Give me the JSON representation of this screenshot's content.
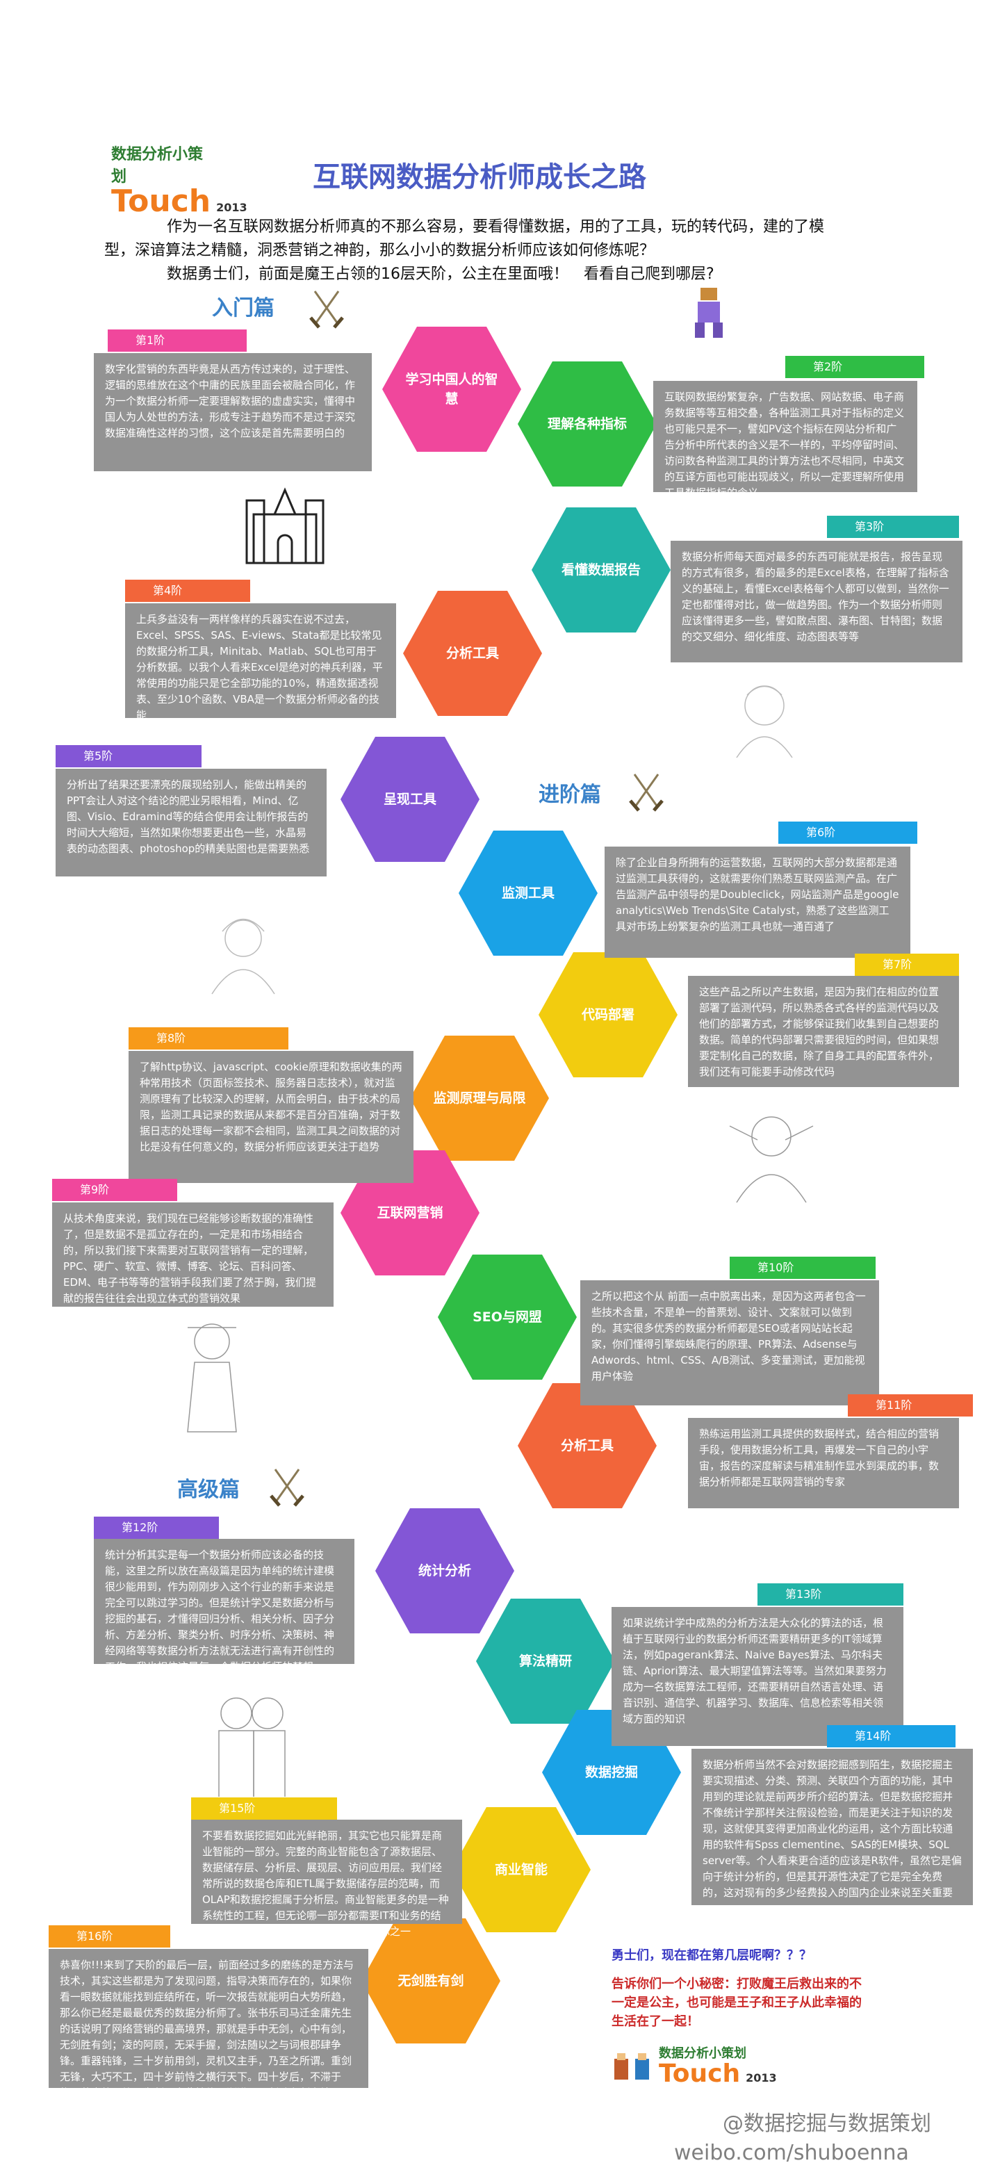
{
  "header": {
    "logo_small": "数据分析小策划",
    "logo_big": "Touch",
    "logo_year": "2013",
    "title": "互联网数据分析师成长之路"
  },
  "intro": {
    "line1": "作为一名互联网数据分析师真的不那么容易，要看得懂数据，用的了工具，玩的转代码，建的了模型，深谙算法之精髓，洞悉营销之神韵，那么小小的数据分析师应该如何修炼呢？",
    "line2": "数据勇士们，前面是魔王占领的16层天阶，公主在里面哦！　看看自己爬到哪层?"
  },
  "sections": {
    "beginner": "入门篇",
    "advanced": "进阶篇",
    "senior": "高级篇"
  },
  "hexes": [
    {
      "label": "学习中国人的智慧",
      "color": "#f0479c"
    },
    {
      "label": "理解各种指标",
      "color": "#2fbd45"
    },
    {
      "label": "看懂数据报告",
      "color": "#22b3a7"
    },
    {
      "label": "分析工具",
      "color": "#f2653a"
    },
    {
      "label": "呈现工具",
      "color": "#8356d6"
    },
    {
      "label": "监测工具",
      "color": "#1aa2e6"
    },
    {
      "label": "代码部署",
      "color": "#f2cc0f"
    },
    {
      "label": "监测原理与局限",
      "color": "#f79a19"
    },
    {
      "label": "互联网营销",
      "color": "#f0479c"
    },
    {
      "label": "SEO与网盟",
      "color": "#2fbd45"
    },
    {
      "label": "分析工具",
      "color": "#f2653a"
    },
    {
      "label": "统计分析",
      "color": "#8356d6"
    },
    {
      "label": "算法精研",
      "color": "#22b3a7"
    },
    {
      "label": "数据挖掘",
      "color": "#1aa2e6"
    },
    {
      "label": "商业智能",
      "color": "#f2cc0f"
    },
    {
      "label": "无剑胜有剑",
      "color": "#f79a19"
    }
  ],
  "steps": [
    {
      "tag": "第1阶",
      "color": "#f0479c",
      "text": "数字化营销的东西毕竟是从西方传过来的，过于理性、逻辑的思维放在这个中庸的民族里面会被融合同化，作为一个数据分析师一定要理解数据的虚虚实实，懂得中国人为人处世的方法，形成专注于趋势而不是过于深究数据准确性这样的习惯，这个应该是首先需要明白的"
    },
    {
      "tag": "第2阶",
      "color": "#2fbd45",
      "text": "互联网数据纷繁复杂，广告数据、网站数据、电子商务数据等等互相交叠，各种监测工具对于指标的定义也可能只是不一，譬如PV这个指标在网站分析和广告分析中所代表的含义是不一样的，平均停留时间、访问数各种监测工具的计算方法也不尽相同，中英文的互译方面也可能出现歧义，所以一定要理解所使用工具数据指标的含义"
    },
    {
      "tag": "第3阶",
      "color": "#22b3a7",
      "text": "数据分析师每天面对最多的东西可能就是报告，报告呈现的方式有很多，看的最多的是Excel表格，在理解了指标含义的基础上，看懂Excel表格每个人都可以做到，当然你一定也都懂得对比，做一做趋势图。作为一个数据分析师则应该懂得更多一些，譬如散点图、瀑布图、甘特图；数据的交叉细分、细化维度、动态图表等等"
    },
    {
      "tag": "第4阶",
      "color": "#f2653a",
      "text": "上兵多益没有一两样像样的兵器实在说不过去，Excel、SPSS、SAS、E-views、Stata都是比较常见的数据分析工具，Minitab、Matlab、SQL也可用于分析数据。以我个人看来Excel是绝对的神兵利器，平常使用的功能只是它全部功能的10%，精通数据透视表、至少10个函数、VBA是一个数据分析师必备的技能"
    },
    {
      "tag": "第5阶",
      "color": "#8356d6",
      "text": "分析出了结果还要漂亮的展现给别人，能做出精美的PPT会让人对这个结论的肥业另眼相看，Mind、亿图、Visio、Edramind等的结合使用会让制作报告的时间大大缩短，当然如果你想要更出色一些，水晶易表的动态图表、photoshop的精美贴图也是需要熟悉"
    },
    {
      "tag": "第6阶",
      "color": "#1aa2e6",
      "text": "除了企业自身所拥有的运营数据，互联网的大部分数据都是通过监测工具获得的，这就需要你们熟悉互联网监测产品。在广告监测产品中领导的是Doubleclick，网站监测产品是google analytics\\Web Trends\\Site Catalyst，熟悉了这些监测工具对市场上纷繁复杂的监测工具也就一通百通了"
    },
    {
      "tag": "第7阶",
      "color": "#f2cc0f",
      "text": "这些产品之所以产生数据，是因为我们在相应的位置部署了监测代码，所以熟悉各式各样的监测代码以及他们的部署方式，才能够保证我们收集到自己想要的数据。简单的代码部署只需要很短的时间，但如果想要定制化自己的数据，除了自身工具的配置条件外，我们还有可能要手动修改代码"
    },
    {
      "tag": "第8阶",
      "color": "#f79a19",
      "text": "了解http协议、javascript、cookie原理和数据收集的两种常用技术（页面标签技术、服务器日志技术），就对监测原理有了比较深入的理解，从而会明白，由于技术的局限，监测工具记录的数据从来都不是百分百准确，对于数据日志的处理每一家都不会相同，监测工具之间数据的对比是没有任何意义的，数据分析师应该更关注于趋势"
    },
    {
      "tag": "第9阶",
      "color": "#f0479c",
      "text": "从技术角度来说，我们现在已经能够诊断数据的准确性了，但是数据不是孤立存在的，一定是和市场相结合的，所以我们接下来需要对互联网营销有一定的理解，PPC、硬广、软宣、微博、博客、论坛、百科问答、EDM、电子书等等的营销手段我们要了然于胸，我们提献的报告往往会出现立体式的营销效果"
    },
    {
      "tag": "第10阶",
      "color": "#2fbd45",
      "text": "之所以把这个从 前面一点中脱离出来，是因为这两者包含一些技术含量，不是单一的普票划、设计、文案就可以做到的。其实很多优秀的数据分析师都是SEO或者网站站长起家，你们懂得引擎蜘蛛爬行的原理、PR算法、Adsense与Adwords、html、CSS、A/B测试、多变量测试，更加能视用户体验"
    },
    {
      "tag": "第11阶",
      "color": "#f2653a",
      "text": "熟练运用监测工具提供的数据样式，结合相应的营销手段，使用数据分析工具，再爆发一下自己的小宇宙，报告的深度解读与精准制作显水到渠成的事，数据分析师都是互联网营销的专家"
    },
    {
      "tag": "第12阶",
      "color": "#8356d6",
      "text": "统计分析其实是每一个数据分析师应该必备的技能，这里之所以放在高级篇是因为单纯的统计建模很少能用到，作为刚刚步入这个行业的新手来说是完全可以跳过学习的。但是统计学又是数据分析与挖掘的基石，才懂得回归分析、相关分析、因子分析、方差分析、聚类分析、时序分析、决策树、神经网络等等数据分析方法就无法进行高有开创性的工作，我也相信这是每一个数据分析师的梦想"
    },
    {
      "tag": "第13阶",
      "color": "#22b3a7",
      "text": "如果说统计学中成熟的分析方法是大众化的算法的话，根植于互联网行业的数据分析师还需要精研更多的IT领域算法，例如pagerank算法、Naive Bayes算法、马尔科夫链、Apriori算法、最大期望值算法等等。当然如果要努力成为一名数据算法工程师，还需要精研自然语言处理、语音识别、通信学、机器学习、数据库、信息检索等相关领域方面的知识"
    },
    {
      "tag": "第14阶",
      "color": "#1aa2e6",
      "text": "数据分析师当然不会对数据挖掘感到陌生，数据挖掘主要实现描述、分类、预测、关联四个方面的功能，其中用到的理论就是前两步所介绍的算法。但是数据挖掘并不像统计学那样关注假设检验，而是更关注于知识的发现，这就使其变得更加商业化的运用，这个方面比较通用的软件有Spss clementine、SAS的EM模块、SQL server等。个人看来更合适的应该是R软件，虽然它是偏向于统计分析的，但是其开源性决定了它是完全免费的，这对现有的多少经费投入的国内企业来说至关重要"
    },
    {
      "tag": "第15阶",
      "color": "#f2cc0f",
      "text": "不要看数据挖掘如此光鲜艳丽，其实它也只能算是商业智能的一部分。完整的商业智能包含了源数据层、数据储存层、分析层、展现层、访问应用层。我们经常所说的数据仓库和ETL属于数据储存层的范畴，而OLAP和数据挖掘属于分析层。商业智能更多的是一种系统性的工程，但无论哪一部分都需要IT和业务的结合，所以其实也是数据分析师的终极目标之一"
    },
    {
      "tag": "第16阶",
      "color": "#f79a19",
      "text": "恭喜你!!!来到了天阶的最后一层，前面经过多的磨练的是方法与技术，其实这些都是为了发现问题，指导决策而存在的，如果你看一眼数据就能找到症结所在，听一次报告就能明白大势所趋，那么你已经是最最优秀的数据分析师了。张书乐司马迁金庸先生的话说明了网络营销的最高境界，那就是手中无剑，心中有剑，无剑胜有剑；凌的阿顾，无采手握，剑法随以之与词根郡肆争锋。重器钝锋，三十岁前用剑，灵机又主手，乃至之所谓。重剑无锋，大巧不工，四十岁前恃之横行天下。四十岁后，不滞于物，草木竹石均可为剑。自此精修，渐进于无剑胜有剑之境"
    }
  ],
  "outro": {
    "question": "勇士们，现在都在第几层呢啊？？？",
    "secret": "告诉你们一个小秘密：打败魔王后救出来的不一定是公主，也可能是王子和王子从此幸福的生活在了一起！"
  },
  "watermark": {
    "weibo": "@数据挖掘与数据策划",
    "url": "weibo.com/shuboenna"
  }
}
